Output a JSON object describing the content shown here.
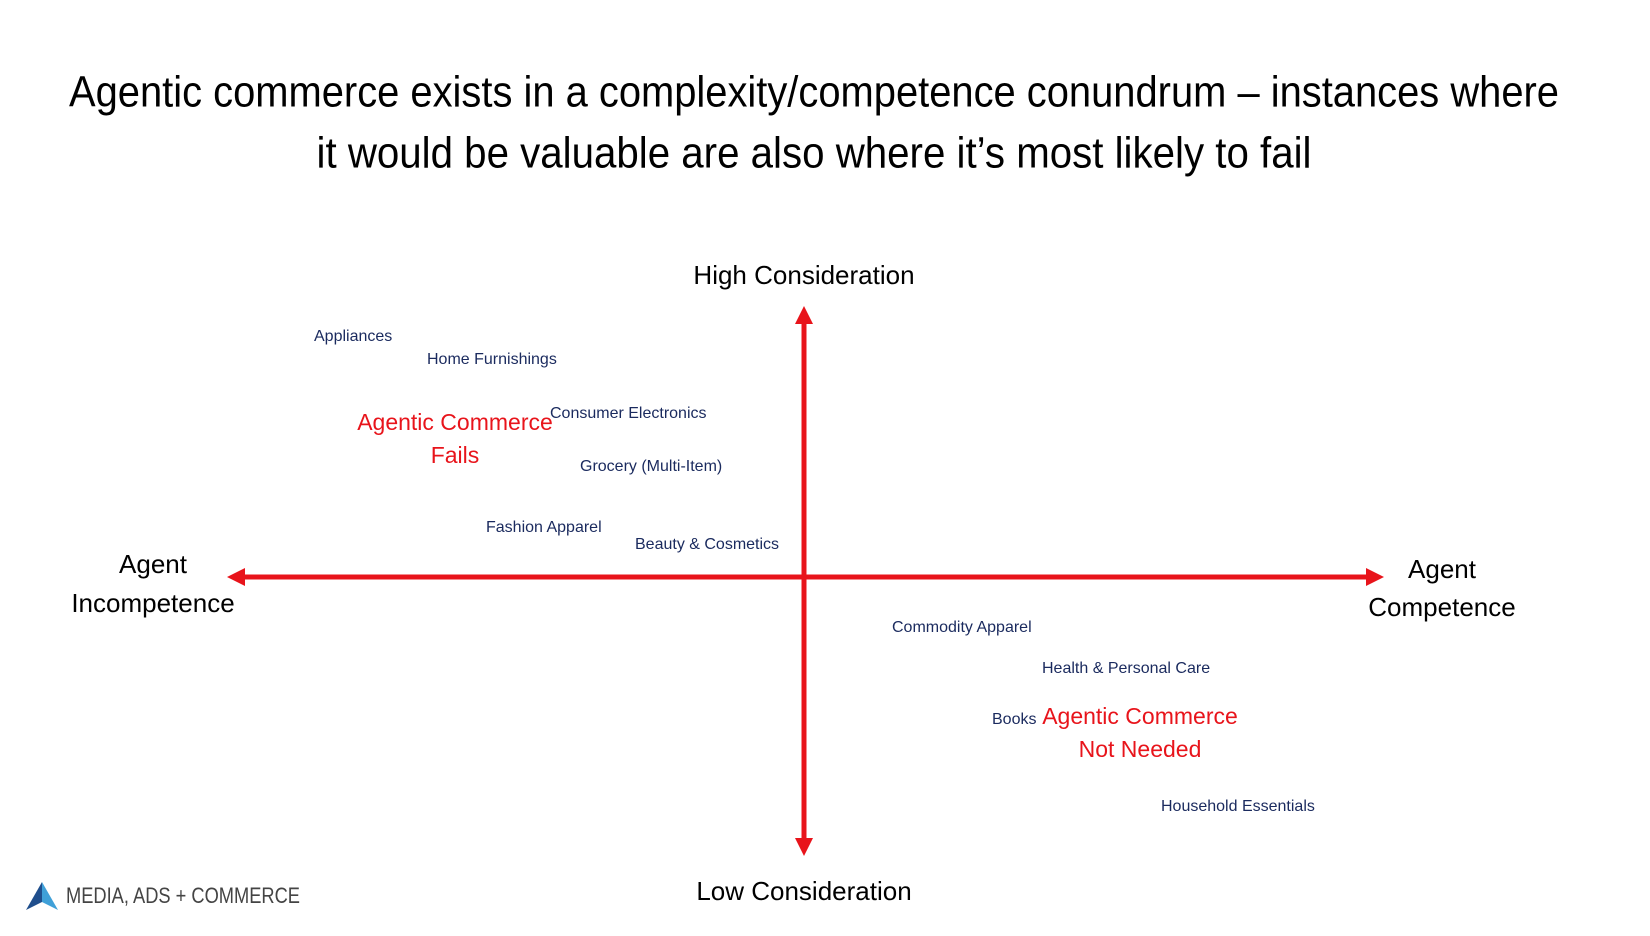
{
  "header": {
    "title_lines": [
      "Agentic commerce exists in a complexity/competence conundrum – instances where",
      "it would be valuable are also where it’s most likely to fail"
    ]
  },
  "axes": {
    "top": "High Consideration",
    "bottom": "Low Consideration",
    "left": [
      "Agent",
      "Incompetence"
    ],
    "right": [
      "Agent",
      "Competence"
    ]
  },
  "quadrants": {
    "top_left": [
      "Agentic Commerce",
      "Fails"
    ],
    "bottom_right": [
      "Agentic Commerce",
      "Not Needed"
    ]
  },
  "items": [
    "Appliances",
    "Home Furnishings",
    "Consumer Electronics",
    "Grocery (Multi-Item)",
    "Fashion Apparel",
    "Beauty & Cosmetics",
    "Commodity Apparel",
    "Health & Personal Care",
    "Books",
    "Household Essentials"
  ],
  "footer": {
    "logo": "MEDIA, ADS + COMMERCE"
  }
}
